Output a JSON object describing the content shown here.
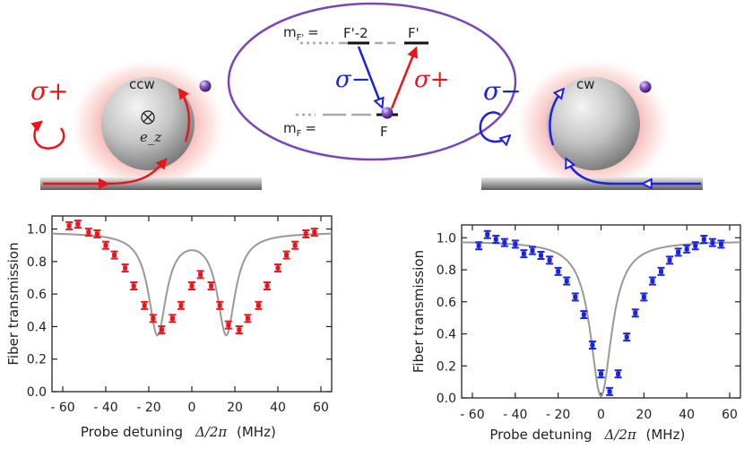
{
  "diagram": {
    "left_polarization": "σ+",
    "left_mode": "ccw",
    "left_axis": "e_z",
    "right_polarization": "σ−",
    "right_mode": "cw",
    "level_upper_label": "m",
    "level_upper_sub": "F'",
    "level_upper_eq": "=",
    "level_upper_a": "F'-2",
    "level_upper_b": "F'",
    "level_lower_label": "m",
    "level_lower_sub": "F",
    "level_lower_eq": "=",
    "level_lower": "F",
    "transition_left": "σ−",
    "transition_right": "σ+",
    "colors": {
      "red": "#e8151b",
      "blue": "#1a23e0",
      "purple": "#7b45b8",
      "fit": "#999999"
    }
  },
  "chart_data": [
    {
      "type": "scatter",
      "title": "",
      "xlabel": "Probe detuning",
      "xlabel_math": "Δ/2π",
      "xlabel_unit": "(MHz)",
      "ylabel": "Fiber transmission",
      "xlim": [
        -65,
        65
      ],
      "ylim": [
        0,
        1.08
      ],
      "xticks": [
        -60,
        -40,
        -20,
        0,
        20,
        40,
        60
      ],
      "xtick_labels": [
        "- 60",
        "- 40",
        "- 20",
        "0",
        "20",
        "40",
        "60"
      ],
      "yticks": [
        0.0,
        0.2,
        0.4,
        0.6,
        0.8,
        1.0
      ],
      "ytick_labels": [
        "0.0",
        "0.2",
        "0.4",
        "0.6",
        "0.8",
        "1.0"
      ],
      "color": "#e8151b",
      "x": [
        -57,
        -53,
        -48,
        -44,
        -40,
        -36,
        -31,
        -27,
        -22,
        -18,
        -14,
        -9,
        -5,
        0,
        4,
        9,
        13,
        17,
        22,
        26,
        31,
        35,
        40,
        44,
        48,
        53,
        57
      ],
      "y": [
        1.02,
        1.03,
        0.98,
        0.97,
        0.9,
        0.84,
        0.76,
        0.65,
        0.53,
        0.45,
        0.38,
        0.45,
        0.53,
        0.65,
        0.72,
        0.65,
        0.53,
        0.41,
        0.38,
        0.45,
        0.53,
        0.65,
        0.76,
        0.84,
        0.9,
        0.97,
        0.98
      ],
      "fit": {
        "type": "double-lorentzian-dip",
        "centers": [
          -16,
          16
        ],
        "width": 10,
        "depth": 0.62,
        "baseline": 0.98
      }
    },
    {
      "type": "scatter",
      "title": "",
      "xlabel": "Probe detuning",
      "xlabel_math": "Δ/2π",
      "xlabel_unit": "(MHz)",
      "ylabel": "Fiber transmission",
      "xlim": [
        -65,
        65
      ],
      "ylim": [
        0,
        1.08
      ],
      "xticks": [
        -60,
        -40,
        -20,
        0,
        20,
        40,
        60
      ],
      "xtick_labels": [
        "- 60",
        "- 40",
        "- 20",
        "0",
        "20",
        "40",
        "60"
      ],
      "yticks": [
        0.0,
        0.2,
        0.4,
        0.6,
        0.8,
        1.0
      ],
      "ytick_labels": [
        "0.0",
        "0.2",
        "0.4",
        "0.6",
        "0.8",
        "1.0"
      ],
      "color": "#1a23e0",
      "x": [
        -57,
        -53,
        -49,
        -45,
        -40,
        -36,
        -32,
        -28,
        -24,
        -20,
        -16,
        -12,
        -8,
        -4,
        0,
        4,
        8,
        12,
        16,
        20,
        24,
        28,
        32,
        36,
        40,
        44,
        48,
        52,
        56
      ],
      "y": [
        0.95,
        1.02,
        0.99,
        0.97,
        0.96,
        0.9,
        0.92,
        0.89,
        0.86,
        0.79,
        0.73,
        0.63,
        0.52,
        0.33,
        0.15,
        0.04,
        0.15,
        0.38,
        0.53,
        0.63,
        0.73,
        0.79,
        0.86,
        0.91,
        0.93,
        0.95,
        0.99,
        0.97,
        0.96
      ],
      "fit": {
        "type": "lorentzian-dip",
        "center": 0,
        "width": 12,
        "depth": 0.97,
        "baseline": 0.98
      }
    }
  ]
}
